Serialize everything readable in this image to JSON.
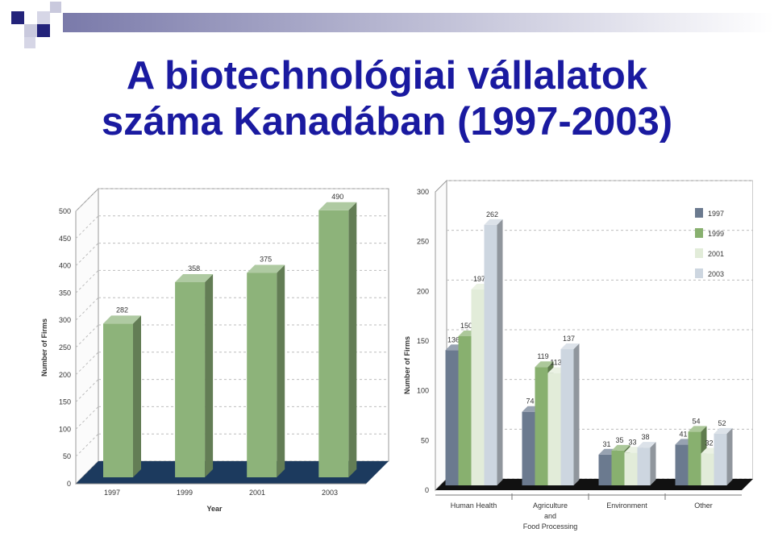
{
  "slide": {
    "title_line1": "A biotechnológiai vállalatok",
    "title_line2": "száma Kanadában (1997-2003)"
  },
  "colors": {
    "title": "#1a1aa0",
    "deco_dark": "#23237a",
    "deco_light": "#c9c9dd",
    "floor_left": "#1c3a5e",
    "bar_green": "#8db37a",
    "floor_right": "#111111"
  },
  "chart_data": [
    {
      "type": "bar",
      "title": "",
      "xlabel": "Year",
      "ylabel": "Number of Firms",
      "ylim": [
        0,
        500
      ],
      "yticks": [
        0,
        50,
        100,
        150,
        200,
        250,
        300,
        350,
        400,
        450,
        500
      ],
      "categories": [
        "1997",
        "1999",
        "2001",
        "2003"
      ],
      "values": [
        282,
        358,
        375,
        490
      ],
      "data_labels": [
        "282",
        "358",
        "375",
        "490"
      ],
      "grid": true,
      "legend": "none"
    },
    {
      "type": "bar",
      "title": "",
      "xlabel": "",
      "ylabel": "Number of Firms",
      "ylim": [
        0,
        300
      ],
      "yticks": [
        0,
        50,
        100,
        150,
        200,
        250,
        300
      ],
      "category_lines": [
        [
          "Human Health"
        ],
        [
          "Agriculture",
          "and",
          "Food Processing"
        ],
        [
          "Environment"
        ],
        [
          "Other"
        ]
      ],
      "series": [
        {
          "name": "1997",
          "color": "#6b7a8f",
          "values": [
            136,
            74,
            31,
            41
          ]
        },
        {
          "name": "1999",
          "color": "#88b06f",
          "values": [
            150,
            119,
            35,
            54
          ]
        },
        {
          "name": "2001",
          "color": "#e2ecd9",
          "values": [
            197,
            113,
            33,
            32
          ]
        },
        {
          "name": "2003",
          "color": "#cdd6e0",
          "values": [
            262,
            137,
            38,
            52
          ]
        }
      ],
      "grid": true,
      "legend": "top-right"
    }
  ]
}
